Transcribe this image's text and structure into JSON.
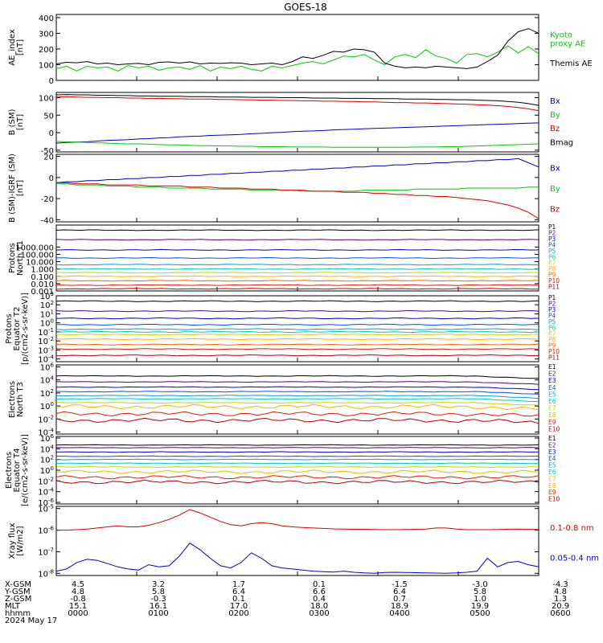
{
  "title": "GOES-18",
  "footer": {
    "row_labels": [
      "X-GSM",
      "Y-GSM",
      "Z-GSM",
      "MLT",
      "hhmm",
      "2024 May 17"
    ],
    "columns": [
      {
        "x": "4.5",
        "y": "4.8",
        "z": "-0.8",
        "mlt": "15.1",
        "hhmm": "0000"
      },
      {
        "x": "3.2",
        "y": "5.8",
        "z": "-0.3",
        "mlt": "16.1",
        "hhmm": "0100"
      },
      {
        "x": "1.7",
        "y": "6.4",
        "z": "0.1",
        "mlt": "17.0",
        "hhmm": "0200"
      },
      {
        "x": "0.1",
        "y": "6.6",
        "z": "0.4",
        "mlt": "18.0",
        "hhmm": "0300"
      },
      {
        "x": "-1.5",
        "y": "6.4",
        "z": "0.7",
        "mlt": "18.9",
        "hhmm": "0400"
      },
      {
        "x": "-3.0",
        "y": "5.8",
        "z": "1.0",
        "mlt": "19.9",
        "hhmm": "0500"
      },
      {
        "x": "-4.3",
        "y": "4.8",
        "z": "1.3",
        "mlt": "20.9",
        "hhmm": "0600"
      }
    ]
  },
  "chart_data": [
    {
      "type": "line",
      "ylabel": "AE_index\n[nT]",
      "ylim": [
        0,
        420
      ],
      "yticks": [
        "0",
        "100",
        "200",
        "300",
        "400"
      ],
      "ytick_values": [
        0,
        100,
        200,
        300,
        400
      ],
      "series": [
        {
          "name": "Kyoto\nproxy AE",
          "color": "#00cc00",
          "values": [
            75,
            90,
            60,
            90,
            80,
            85,
            60,
            95,
            80,
            90,
            65,
            80,
            85,
            70,
            95,
            60,
            85,
            75,
            90,
            70,
            60,
            90,
            80,
            95,
            110,
            120,
            105,
            130,
            155,
            150,
            165,
            130,
            100,
            150,
            165,
            145,
            195,
            155,
            140,
            110,
            165,
            170,
            150,
            180,
            220,
            175,
            215,
            170
          ]
        },
        {
          "name": "Themis AE",
          "color": "#000000",
          "values": [
            105,
            115,
            112,
            120,
            105,
            110,
            100,
            105,
            108,
            100,
            115,
            118,
            110,
            118,
            105,
            110,
            108,
            112,
            110,
            100,
            105,
            110,
            100,
            120,
            150,
            140,
            160,
            185,
            180,
            200,
            195,
            180,
            110,
            90,
            80,
            85,
            80,
            90,
            85,
            80,
            75,
            85,
            120,
            160,
            250,
            310,
            330,
            300
          ]
        }
      ]
    },
    {
      "type": "line",
      "ylabel": "B (SM)\n[nT]",
      "ylim": [
        -55,
        115
      ],
      "yticks": [
        "-50",
        "0",
        "50",
        "100"
      ],
      "ytick_values": [
        -50,
        0,
        50,
        100
      ],
      "series": [
        {
          "name": "Bx",
          "color": "#0000cc",
          "values": [
            -30,
            -28,
            -27,
            -26,
            -24,
            -22,
            -21,
            -20,
            -18,
            -17,
            -15,
            -14,
            -12,
            -11,
            -10,
            -8,
            -7,
            -6,
            -5,
            -3,
            -2,
            0,
            1,
            3,
            4,
            5,
            6,
            8,
            9,
            10,
            11,
            12,
            13,
            14,
            15,
            16,
            17,
            18,
            19,
            20,
            21,
            22,
            23,
            24,
            25,
            26,
            27,
            28
          ]
        },
        {
          "name": "By",
          "color": "#00cc00",
          "values": [
            -25,
            -26,
            -27,
            -28,
            -29,
            -30,
            -31,
            -32,
            -32,
            -33,
            -34,
            -35,
            -35,
            -36,
            -37,
            -37,
            -38,
            -38,
            -39,
            -39,
            -40,
            -40,
            -40,
            -41,
            -41,
            -41,
            -41,
            -42,
            -42,
            -42,
            -42,
            -42,
            -42,
            -42,
            -42,
            -41,
            -41,
            -41,
            -40,
            -40,
            -39,
            -38,
            -37,
            -36,
            -35,
            -34,
            -33,
            -32
          ]
        },
        {
          "name": "Bz",
          "color": "#dd0000",
          "values": [
            102,
            103,
            102,
            101,
            101,
            100,
            100,
            99,
            99,
            98,
            98,
            97,
            97,
            96,
            96,
            96,
            95,
            95,
            94,
            94,
            93,
            93,
            92,
            92,
            91,
            91,
            90,
            90,
            89,
            89,
            88,
            88,
            87,
            86,
            86,
            85,
            85,
            84,
            83,
            82,
            81,
            80,
            79,
            77,
            75,
            72,
            68,
            63
          ]
        },
        {
          "name": "Bmag",
          "color": "#000000",
          "values": [
            108,
            109,
            108,
            108,
            107,
            107,
            106,
            106,
            105,
            105,
            104,
            104,
            104,
            103,
            103,
            103,
            102,
            102,
            102,
            101,
            101,
            101,
            100,
            100,
            100,
            99,
            99,
            99,
            98,
            98,
            98,
            97,
            97,
            97,
            96,
            96,
            96,
            95,
            95,
            94,
            94,
            93,
            92,
            91,
            89,
            87,
            83,
            78
          ]
        }
      ]
    },
    {
      "type": "line",
      "ylabel": "B (SM)-IGRF (SM)\n[nT]",
      "ylim": [
        -42,
        22
      ],
      "yticks": [
        "-40",
        "-20",
        "0",
        "20"
      ],
      "ytick_values": [
        -40,
        -20,
        0,
        20
      ],
      "series": [
        {
          "name": "Bx",
          "color": "#0000cc",
          "values": [
            -5,
            -4,
            -4,
            -3,
            -3,
            -2,
            -2,
            -1,
            -1,
            0,
            0,
            1,
            1,
            2,
            2,
            3,
            3,
            4,
            4,
            5,
            5,
            6,
            6,
            7,
            7,
            8,
            8,
            9,
            9,
            10,
            10,
            11,
            11,
            12,
            12,
            13,
            13,
            14,
            14,
            15,
            15,
            16,
            16,
            17,
            17,
            18,
            14,
            10
          ]
        },
        {
          "name": "By",
          "color": "#00cc00",
          "values": [
            -6,
            -6,
            -7,
            -7,
            -7,
            -8,
            -8,
            -8,
            -9,
            -9,
            -9,
            -10,
            -10,
            -10,
            -10,
            -11,
            -11,
            -11,
            -11,
            -12,
            -12,
            -12,
            -12,
            -12,
            -13,
            -13,
            -13,
            -13,
            -13,
            -13,
            -12,
            -12,
            -12,
            -12,
            -12,
            -11,
            -11,
            -11,
            -11,
            -11,
            -10,
            -10,
            -10,
            -10,
            -10,
            -10,
            -9,
            -9
          ]
        },
        {
          "name": "Bz",
          "color": "#dd0000",
          "values": [
            -5,
            -5,
            -6,
            -6,
            -6,
            -7,
            -7,
            -7,
            -7,
            -8,
            -8,
            -8,
            -8,
            -9,
            -9,
            -9,
            -10,
            -10,
            -10,
            -11,
            -11,
            -11,
            -12,
            -12,
            -12,
            -13,
            -13,
            -13,
            -14,
            -14,
            -14,
            -15,
            -15,
            -16,
            -16,
            -17,
            -17,
            -18,
            -18,
            -19,
            -20,
            -21,
            -22,
            -24,
            -26,
            -29,
            -33,
            -39
          ]
        }
      ]
    },
    {
      "type": "line",
      "ylabel": "Protons\nNorth T1",
      "log": true,
      "ylim": [
        -3,
        6
      ],
      "yticks": [
        "0.001",
        "0.010",
        "0.100",
        "1.000",
        "10.000",
        "100.000",
        "1000.000"
      ],
      "ytick_values": [
        -3,
        -2,
        -1,
        0,
        1,
        2,
        3
      ],
      "series": [
        {
          "name": "P1",
          "color": "#000000",
          "level": 5.3
        },
        {
          "name": "P2",
          "color": "#5a0078",
          "level": 4.0
        },
        {
          "name": "P3",
          "color": "#0000cc",
          "level": 2.6
        },
        {
          "name": "P4",
          "color": "#0050ff",
          "level": 1.5
        },
        {
          "name": "P5",
          "color": "#00a0d8",
          "level": 0.6
        },
        {
          "name": "P6",
          "color": "#00c8b4",
          "level": 0.0
        },
        {
          "name": "P7",
          "color": "#ccd000",
          "level": -0.5
        },
        {
          "name": "P8",
          "color": "#ffb000",
          "level": -1.0
        },
        {
          "name": "P9",
          "color": "#ff6000",
          "level": -1.6
        },
        {
          "name": "P10",
          "color": "#e02000",
          "level": -2.2
        },
        {
          "name": "P11",
          "color": "#b40000",
          "level": -2.7
        }
      ]
    },
    {
      "type": "line",
      "ylabel": "Protons\nEquator T2\n[p/(cm2-s-sr-keV)]",
      "log": true,
      "ylim": [
        -4.3,
        3
      ],
      "yticks": [
        "10-4",
        "10-3",
        "10-2",
        "10-1",
        "100",
        "101",
        "102",
        "103"
      ],
      "ytick_values": [
        -4,
        -3,
        -2,
        -1,
        0,
        1,
        2,
        3
      ],
      "series": [
        {
          "name": "P1",
          "color": "#000000",
          "level": 2.4
        },
        {
          "name": "P2",
          "color": "#5a0078",
          "level": 1.3
        },
        {
          "name": "P3",
          "color": "#0000cc",
          "level": 0.5
        },
        {
          "name": "P4",
          "color": "#0050ff",
          "level": -0.2
        },
        {
          "name": "P5",
          "color": "#00a0d8",
          "level": -0.7
        },
        {
          "name": "P6",
          "color": "#00c8b4",
          "level": -1.0
        },
        {
          "name": "P7",
          "color": "#ccd000",
          "level": -1.3
        },
        {
          "name": "P8",
          "color": "#ffb000",
          "level": -1.8
        },
        {
          "name": "P9",
          "color": "#ff6000",
          "level": -2.4
        },
        {
          "name": "P10",
          "color": "#e02000",
          "level": -2.9
        },
        {
          "name": "P11",
          "color": "#b40000",
          "level": -3.6
        }
      ]
    },
    {
      "type": "line",
      "ylabel": "Electrons\nNorth T3",
      "log": true,
      "ylim": [
        -4.3,
        6.3
      ],
      "yticks": [
        "10-4",
        "10-2",
        "100",
        "102",
        "104",
        "106"
      ],
      "ytick_values": [
        -4,
        -2,
        0,
        2,
        4,
        6
      ],
      "series": [
        {
          "name": "E1",
          "color": "#000000",
          "level": 4.6
        },
        {
          "name": "E2",
          "color": "#5a0078",
          "level": 3.7
        },
        {
          "name": "E3",
          "color": "#0000cc",
          "level": 2.9
        },
        {
          "name": "E4",
          "color": "#0050ff",
          "level": 2.2
        },
        {
          "name": "E5",
          "color": "#00a0d8",
          "level": 1.6
        },
        {
          "name": "E6",
          "color": "#00c8b4",
          "level": 1.1
        },
        {
          "name": "E7",
          "color": "#ccd000",
          "level": 0.5
        },
        {
          "name": "E8",
          "color": "#ffb000",
          "level": -0.1
        },
        {
          "name": "E9",
          "color": "#e02000",
          "level": -1.2
        },
        {
          "name": "E10",
          "color": "#b40000",
          "level": -2.2
        }
      ]
    },
    {
      "type": "line",
      "ylabel": "Electrons\nEquator T4\n[e/(cm2-s-sr-keV)]",
      "log": true,
      "ylim": [
        -6.3,
        6.3
      ],
      "yticks": [
        "10-6",
        "10-4",
        "10-2",
        "100",
        "102",
        "104",
        "106"
      ],
      "ytick_values": [
        -6,
        -4,
        -2,
        0,
        2,
        4,
        6
      ],
      "series": [
        {
          "name": "E1",
          "color": "#000000",
          "level": 4.7
        },
        {
          "name": "E2",
          "color": "#5a0078",
          "level": 4.2
        },
        {
          "name": "E3",
          "color": "#0000cc",
          "level": 3.4
        },
        {
          "name": "E4",
          "color": "#0050ff",
          "level": 2.6
        },
        {
          "name": "E5",
          "color": "#00a0d8",
          "level": 2.0
        },
        {
          "name": "E6",
          "color": "#00c8b4",
          "level": 1.3
        },
        {
          "name": "E7",
          "color": "#ccd000",
          "level": 0.6
        },
        {
          "name": "E8",
          "color": "#ffb000",
          "level": -0.3
        },
        {
          "name": "E9",
          "color": "#e02000",
          "level": -1.3
        },
        {
          "name": "E10",
          "color": "#b40000",
          "level": -2.2
        }
      ]
    },
    {
      "type": "line",
      "ylabel": "Xray flux\n[W/m2]",
      "log": true,
      "ylim": [
        -8.1,
        -4.9
      ],
      "yticks": [
        "10-8",
        "10-7",
        "10-6",
        "10-5"
      ],
      "ytick_values": [
        -8,
        -7,
        -6,
        -5
      ],
      "series": [
        {
          "name": "0.1-0.8 nm",
          "color": "#dd0000",
          "values": [
            -6.0,
            -6.0,
            -5.98,
            -5.95,
            -5.9,
            -5.85,
            -5.8,
            -5.85,
            -5.85,
            -5.78,
            -5.65,
            -5.5,
            -5.3,
            -5.05,
            -5.2,
            -5.4,
            -5.6,
            -5.75,
            -5.8,
            -5.7,
            -5.65,
            -5.7,
            -5.8,
            -5.85,
            -5.88,
            -5.9,
            -5.92,
            -5.94,
            -5.95,
            -5.96,
            -5.96,
            -5.97,
            -5.98,
            -5.98,
            -5.97,
            -5.96,
            -5.95,
            -5.9,
            -5.9,
            -5.95,
            -5.98,
            -5.98,
            -5.98,
            -5.97,
            -5.96,
            -5.95,
            -5.96,
            -5.97
          ]
        },
        {
          "name": "0.05-0.4 nm",
          "color": "#0000cc",
          "values": [
            -7.9,
            -7.8,
            -7.5,
            -7.35,
            -7.4,
            -7.55,
            -7.7,
            -7.8,
            -7.85,
            -7.6,
            -7.7,
            -7.65,
            -7.2,
            -6.6,
            -6.9,
            -7.3,
            -7.65,
            -7.75,
            -7.5,
            -7.05,
            -7.3,
            -7.65,
            -7.75,
            -7.8,
            -7.85,
            -7.9,
            -7.92,
            -7.94,
            -7.9,
            -7.95,
            -7.98,
            -8.0,
            -7.96,
            -7.95,
            -7.96,
            -7.97,
            -7.98,
            -7.99,
            -8.0,
            -7.98,
            -7.95,
            -7.9,
            -7.3,
            -7.7,
            -7.5,
            -7.45,
            -7.6,
            -7.7
          ]
        }
      ]
    }
  ]
}
